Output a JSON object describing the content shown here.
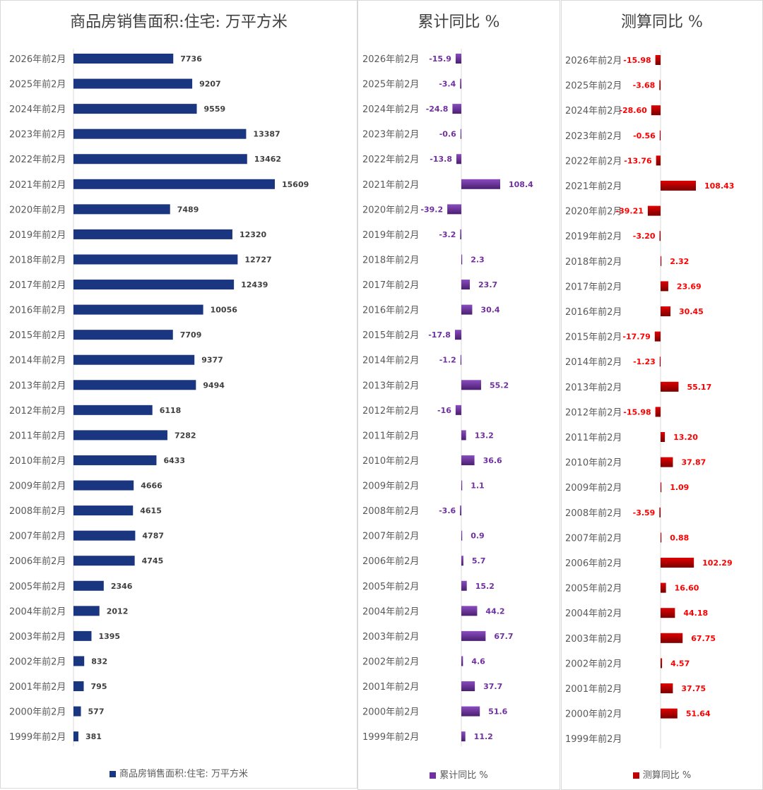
{
  "chart_data": [
    {
      "type": "bar",
      "orientation": "horizontal",
      "title": "商品房销售面积:住宅: 万平方米",
      "legend": "商品房销售面积:住宅: 万平方米",
      "legend_position": "bottom",
      "grid": false,
      "color": "#1a3680",
      "label_color": "#404040",
      "categories": [
        "2026年前2月",
        "2025年前2月",
        "2024年前2月",
        "2023年前2月",
        "2022年前2月",
        "2021年前2月",
        "2020年前2月",
        "2019年前2月",
        "2018年前2月",
        "2017年前2月",
        "2016年前2月",
        "2015年前2月",
        "2014年前2月",
        "2013年前2月",
        "2012年前2月",
        "2011年前2月",
        "2010年前2月",
        "2009年前2月",
        "2008年前2月",
        "2007年前2月",
        "2006年前2月",
        "2005年前2月",
        "2004年前2月",
        "2003年前2月",
        "2002年前2月",
        "2001年前2月",
        "2000年前2月",
        "1999年前2月"
      ],
      "values": [
        7736,
        9207,
        9559,
        13387,
        13462,
        15609,
        7489,
        12320,
        12727,
        12439,
        10056,
        7709,
        9377,
        9494,
        6118,
        7282,
        6433,
        4666,
        4615,
        4787,
        4745,
        2346,
        2012,
        1395,
        832,
        795,
        577,
        381
      ],
      "decimals": 0
    },
    {
      "type": "bar",
      "orientation": "horizontal",
      "title": "累计同比 %",
      "legend": "累计同比 %",
      "legend_position": "bottom",
      "grid": false,
      "color": "#7030a0",
      "label_color": "#7030a0",
      "categories": [
        "2026年前2月",
        "2025年前2月",
        "2024年前2月",
        "2023年前2月",
        "2022年前2月",
        "2021年前2月",
        "2020年前2月",
        "2019年前2月",
        "2018年前2月",
        "2017年前2月",
        "2016年前2月",
        "2015年前2月",
        "2014年前2月",
        "2013年前2月",
        "2012年前2月",
        "2011年前2月",
        "2010年前2月",
        "2009年前2月",
        "2008年前2月",
        "2007年前2月",
        "2006年前2月",
        "2005年前2月",
        "2004年前2月",
        "2003年前2月",
        "2002年前2月",
        "2001年前2月",
        "2000年前2月",
        "1999年前2月"
      ],
      "values": [
        -15.9,
        -3.4,
        -24.8,
        -0.6,
        -13.8,
        108.4,
        -39.2,
        -3.2,
        2.3,
        23.7,
        30.4,
        -17.8,
        -1.2,
        55.2,
        -16,
        13.2,
        36.6,
        1.1,
        -3.6,
        0.9,
        5.7,
        15.2,
        44.2,
        67.7,
        4.6,
        37.7,
        51.6,
        11.2
      ],
      "decimals": null
    },
    {
      "type": "bar",
      "orientation": "horizontal",
      "title": "测算同比 %",
      "legend": "测算同比 %",
      "legend_position": "bottom",
      "grid": false,
      "color": "#c00000",
      "label_color": "#ff0000",
      "categories": [
        "2026年前2月",
        "2025年前2月",
        "2024年前2月",
        "2023年前2月",
        "2022年前2月",
        "2021年前2月",
        "2020年前2月",
        "2019年前2月",
        "2018年前2月",
        "2017年前2月",
        "2016年前2月",
        "2015年前2月",
        "2014年前2月",
        "2013年前2月",
        "2012年前2月",
        "2011年前2月",
        "2010年前2月",
        "2009年前2月",
        "2008年前2月",
        "2007年前2月",
        "2006年前2月",
        "2005年前2月",
        "2004年前2月",
        "2003年前2月",
        "2002年前2月",
        "2001年前2月",
        "2000年前2月",
        "1999年前2月"
      ],
      "values": [
        -15.98,
        -3.68,
        -28.6,
        -0.56,
        -13.76,
        108.43,
        -39.21,
        -3.2,
        2.32,
        23.69,
        30.45,
        -17.79,
        -1.23,
        55.17,
        -15.98,
        13.2,
        37.87,
        1.09,
        -3.59,
        0.88,
        102.29,
        16.6,
        44.18,
        67.75,
        4.57,
        37.75,
        51.64,
        null
      ],
      "decimals": 2
    }
  ]
}
